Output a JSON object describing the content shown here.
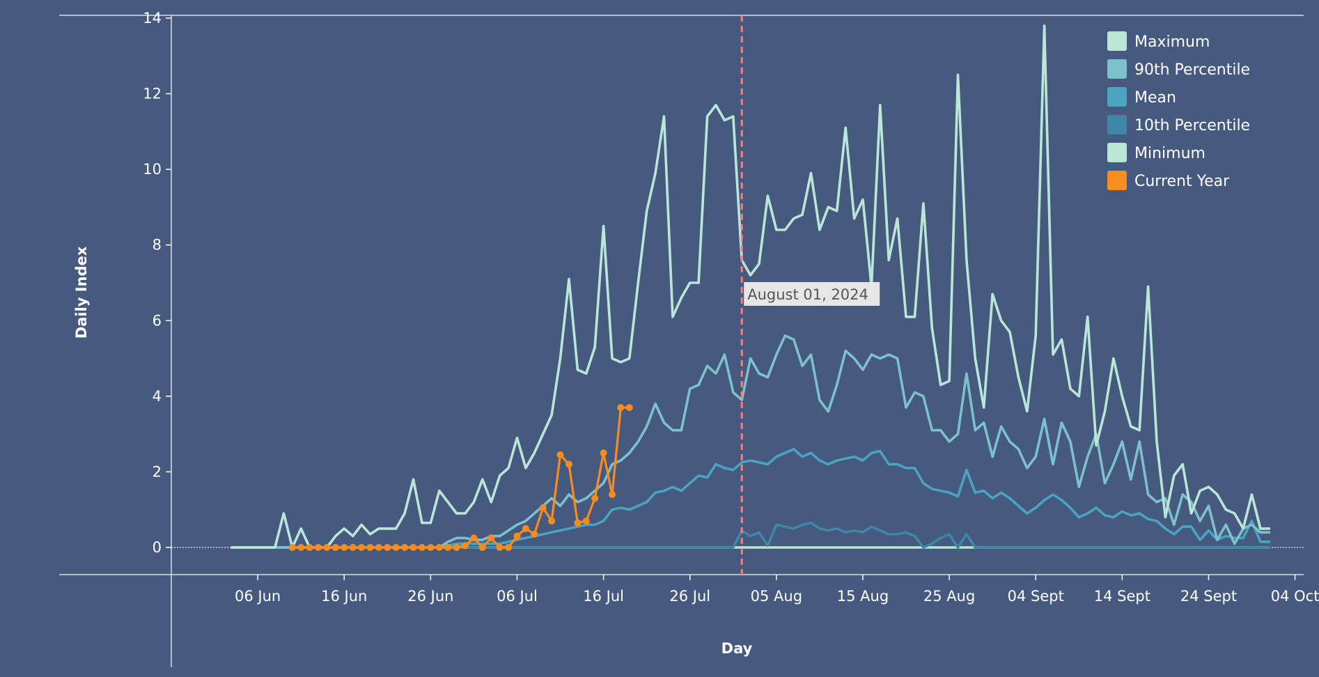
{
  "chart_data": {
    "type": "line",
    "xlabel": "Day",
    "ylabel": "Daily Index",
    "ylim": [
      0,
      14
    ],
    "yticks": [
      0,
      2,
      4,
      6,
      8,
      10,
      12,
      14
    ],
    "xlim": [
      "2024-05-27",
      "2024-10-05"
    ],
    "xticks": [
      {
        "date": "2024-06-06",
        "label": "06 Jun"
      },
      {
        "date": "2024-06-16",
        "label": "16 Jun"
      },
      {
        "date": "2024-06-26",
        "label": "26 Jun"
      },
      {
        "date": "2024-07-06",
        "label": "06 Jul"
      },
      {
        "date": "2024-07-16",
        "label": "16 Jul"
      },
      {
        "date": "2024-07-26",
        "label": "26 Jul"
      },
      {
        "date": "2024-08-05",
        "label": "05 Aug"
      },
      {
        "date": "2024-08-15",
        "label": "15 Aug"
      },
      {
        "date": "2024-08-25",
        "label": "25 Aug"
      },
      {
        "date": "2024-09-04",
        "label": "04 Sept"
      },
      {
        "date": "2024-09-14",
        "label": "14 Sept"
      },
      {
        "date": "2024-09-24",
        "label": "24 Sept"
      },
      {
        "date": "2024-10-04",
        "label": "04 Oct"
      }
    ],
    "grid": false,
    "legend_position": "top-right",
    "annotation": {
      "date": "2024-08-01",
      "text": "August 01, 2024",
      "color": "#f08080"
    },
    "series": [
      {
        "name": "Maximum",
        "color": "#b9e6d6",
        "markers": false,
        "start": "2024-06-03",
        "values": [
          0,
          0,
          0,
          0,
          0,
          0,
          0.9,
          0,
          0.5,
          0,
          0,
          0,
          0.3,
          0.5,
          0.3,
          0.6,
          0.35,
          0.5,
          0.5,
          0.5,
          0.9,
          1.8,
          0.65,
          0.65,
          1.5,
          1.2,
          0.9,
          0.9,
          1.2,
          1.8,
          1.2,
          1.9,
          2.1,
          2.9,
          2.1,
          2.5,
          3,
          3.5,
          5,
          7.1,
          4.7,
          4.6,
          5.3,
          8.5,
          5,
          4.9,
          5,
          7,
          8.9,
          9.9,
          11.4,
          6.1,
          6.6,
          7,
          7,
          11.4,
          11.7,
          11.3,
          11.4,
          7.6,
          7.2,
          7.5,
          9.3,
          8.4,
          8.4,
          8.7,
          8.8,
          9.9,
          8.4,
          9,
          8.9,
          11.1,
          8.7,
          9.2,
          6.9,
          11.7,
          7.6,
          8.7,
          6.1,
          6.1,
          9.1,
          5.8,
          4.3,
          4.4,
          12.5,
          7.6,
          5,
          3.7,
          6.7,
          6,
          5.7,
          4.5,
          3.6,
          5.6,
          13.8,
          5.1,
          5.5,
          4.2,
          4,
          6.1,
          2.7,
          3.6,
          5,
          4,
          3.2,
          3.1,
          6.9,
          2.8,
          0.8,
          1.9,
          2.2,
          0.9,
          1.5,
          1.6,
          1.4,
          1,
          0.9,
          0.5,
          1.4,
          0.5,
          0.5
        ]
      },
      {
        "name": "90th Percentile",
        "color": "#7cc1cb",
        "markers": false,
        "start": "2024-06-03",
        "values": [
          0,
          0,
          0,
          0,
          0,
          0,
          0,
          0,
          0,
          0,
          0,
          0,
          0,
          0,
          0,
          0,
          0,
          0,
          0,
          0,
          0,
          0,
          0,
          0,
          0,
          0.15,
          0.25,
          0.25,
          0.2,
          0.2,
          0.3,
          0.3,
          0.45,
          0.6,
          0.7,
          0.9,
          1.1,
          1.3,
          1.1,
          1.4,
          1.2,
          1.3,
          1.5,
          1.7,
          2.2,
          2.3,
          2.5,
          2.8,
          3.2,
          3.8,
          3.3,
          3.1,
          3.1,
          4.2,
          4.3,
          4.8,
          4.6,
          5.1,
          4.1,
          3.9,
          5,
          4.6,
          4.5,
          5.1,
          5.6,
          5.5,
          4.8,
          5.1,
          3.9,
          3.6,
          4.3,
          5.2,
          5,
          4.7,
          5.1,
          5,
          5.1,
          5,
          3.7,
          4.1,
          4,
          3.1,
          3.1,
          2.8,
          3,
          4.6,
          3.1,
          3.3,
          2.4,
          3.2,
          2.8,
          2.6,
          2.1,
          2.4,
          3.4,
          2.2,
          3.3,
          2.8,
          1.6,
          2.4,
          3,
          1.7,
          2.2,
          2.8,
          1.8,
          2.8,
          1.4,
          1.2,
          1.3,
          0.6,
          1.4,
          1.2,
          0.7,
          1.1,
          0.2,
          0.6,
          0.1,
          0.5,
          0.6,
          0.4,
          0.4
        ]
      },
      {
        "name": "Mean",
        "color": "#4aa3bf",
        "markers": false,
        "start": "2024-06-03",
        "values": [
          0,
          0,
          0,
          0,
          0,
          0,
          0,
          0,
          0,
          0,
          0,
          0,
          0,
          0,
          0,
          0,
          0,
          0,
          0,
          0,
          0,
          0,
          0,
          0,
          0,
          0.05,
          0.1,
          0.1,
          0.1,
          0.1,
          0.1,
          0.1,
          0.15,
          0.2,
          0.25,
          0.3,
          0.35,
          0.4,
          0.45,
          0.5,
          0.55,
          0.6,
          0.6,
          0.7,
          1,
          1.05,
          1,
          1.1,
          1.2,
          1.45,
          1.5,
          1.6,
          1.5,
          1.7,
          1.9,
          1.85,
          2.2,
          2.1,
          2.05,
          2.25,
          2.3,
          2.25,
          2.2,
          2.4,
          2.5,
          2.6,
          2.4,
          2.5,
          2.3,
          2.2,
          2.3,
          2.35,
          2.4,
          2.3,
          2.5,
          2.55,
          2.2,
          2.2,
          2.1,
          2.1,
          1.7,
          1.55,
          1.5,
          1.45,
          1.35,
          2.05,
          1.45,
          1.5,
          1.3,
          1.45,
          1.3,
          1.1,
          0.9,
          1.05,
          1.25,
          1.4,
          1.25,
          1.05,
          0.8,
          0.9,
          1.05,
          0.85,
          0.8,
          0.95,
          0.85,
          0.9,
          0.75,
          0.7,
          0.5,
          0.35,
          0.55,
          0.55,
          0.2,
          0.45,
          0.2,
          0.3,
          0.25,
          0.25,
          0.7,
          0.15,
          0.15
        ]
      },
      {
        "name": "10th Percentile",
        "color": "#3f86a8",
        "markers": false,
        "start": "2024-06-03",
        "values": [
          0,
          0,
          0,
          0,
          0,
          0,
          0,
          0,
          0,
          0,
          0,
          0,
          0,
          0,
          0,
          0,
          0,
          0,
          0,
          0,
          0,
          0,
          0,
          0,
          0,
          0,
          0,
          0,
          0,
          0,
          0,
          0,
          0,
          0,
          0,
          0,
          0,
          0,
          0,
          0,
          0,
          0,
          0,
          0,
          0,
          0,
          0,
          0,
          0,
          0,
          0,
          0,
          0,
          0,
          0,
          0,
          0,
          0,
          0,
          0.45,
          0.3,
          0.4,
          0.05,
          0.6,
          0.55,
          0.5,
          0.6,
          0.65,
          0.5,
          0.45,
          0.5,
          0.4,
          0.45,
          0.4,
          0.55,
          0.45,
          0.35,
          0.35,
          0.4,
          0.3,
          0,
          0.1,
          0.25,
          0.35,
          0,
          0.35,
          0,
          0,
          0,
          0,
          0,
          0,
          0,
          0,
          0,
          0,
          0,
          0,
          0,
          0,
          0,
          0,
          0,
          0,
          0,
          0,
          0,
          0,
          0,
          0,
          0,
          0,
          0,
          0,
          0,
          0,
          0,
          0,
          0,
          0,
          0
        ]
      },
      {
        "name": "Minimum",
        "color": "#b9e6d6",
        "markers": false,
        "start": "2024-06-03",
        "values": [
          0,
          0,
          0,
          0,
          0,
          0,
          0,
          0,
          0,
          0,
          0,
          0,
          0,
          0,
          0,
          0,
          0,
          0,
          0,
          0,
          0,
          0,
          0,
          0,
          0,
          0,
          0,
          0,
          0,
          0,
          0,
          0,
          0,
          0,
          0,
          0,
          0,
          0,
          0,
          0,
          0,
          0,
          0,
          0,
          0,
          0,
          0,
          0,
          0,
          0,
          0,
          0,
          0,
          0,
          0,
          0,
          0,
          0,
          0,
          0,
          0,
          0,
          0,
          0,
          0,
          0,
          0,
          0,
          0,
          0,
          0,
          0,
          0,
          0,
          0,
          0,
          0,
          0,
          0,
          0,
          0,
          0,
          0,
          0,
          0,
          0,
          0,
          0,
          0,
          0,
          0,
          0,
          0,
          0,
          0,
          0,
          0,
          0,
          0,
          0,
          0,
          0,
          0,
          0,
          0,
          0,
          0,
          0,
          0,
          0,
          0,
          0,
          0,
          0,
          0,
          0,
          0,
          0,
          0,
          0,
          0
        ]
      },
      {
        "name": "Current Year",
        "color": "#f98c1e",
        "markers": true,
        "start": "2024-06-10",
        "values": [
          0,
          0,
          0,
          0,
          0,
          0,
          0,
          0,
          0,
          0,
          0,
          0,
          0,
          0,
          0,
          0,
          0,
          0,
          0,
          0,
          0.05,
          0.25,
          0,
          0.25,
          0,
          0,
          0.3,
          0.5,
          0.35,
          1.05,
          0.7,
          2.45,
          2.2,
          0.65,
          0.7,
          1.3,
          2.5,
          1.4,
          3.7,
          3.7
        ]
      }
    ]
  }
}
